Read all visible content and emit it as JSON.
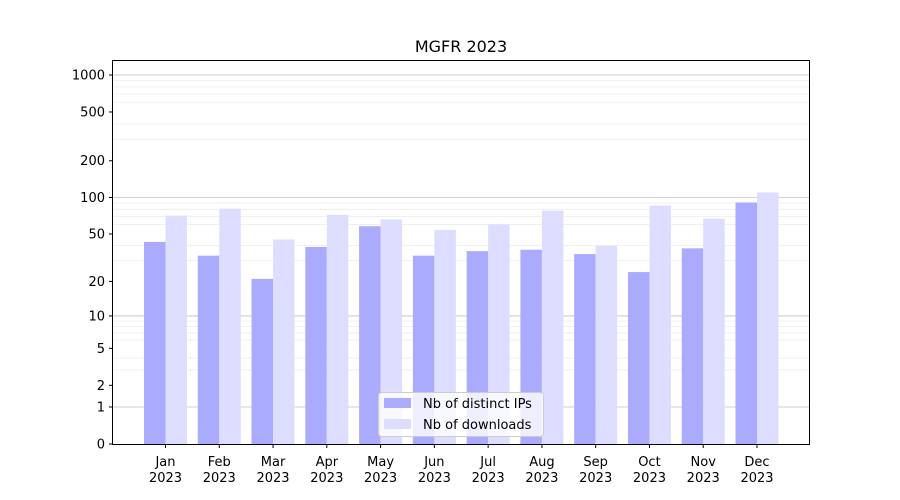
{
  "chart_data": {
    "type": "bar",
    "title": "MGFR 2023",
    "xlabel": "",
    "ylabel": "",
    "y_scale": "symlog",
    "ylim": [
      0,
      1300
    ],
    "y_ticks": [
      0,
      1,
      2,
      5,
      10,
      20,
      50,
      100,
      200,
      500,
      1000
    ],
    "grid": true,
    "legend_position": "lower center",
    "categories": [
      "Jan\n2023",
      "Feb\n2023",
      "Mar\n2023",
      "Apr\n2023",
      "May\n2023",
      "Jun\n2023",
      "Jul\n2023",
      "Aug\n2023",
      "Sep\n2023",
      "Oct\n2023",
      "Nov\n2023",
      "Dec\n2023"
    ],
    "series": [
      {
        "name": "Nb of distinct IPs",
        "color": "#aaaaff",
        "values": [
          43,
          33,
          21,
          39,
          58,
          33,
          36,
          37,
          34,
          24,
          38,
          91
        ]
      },
      {
        "name": "Nb of downloads",
        "color": "#ddddff",
        "values": [
          71,
          81,
          45,
          72,
          66,
          54,
          60,
          78,
          40,
          86,
          67,
          110
        ]
      }
    ]
  }
}
